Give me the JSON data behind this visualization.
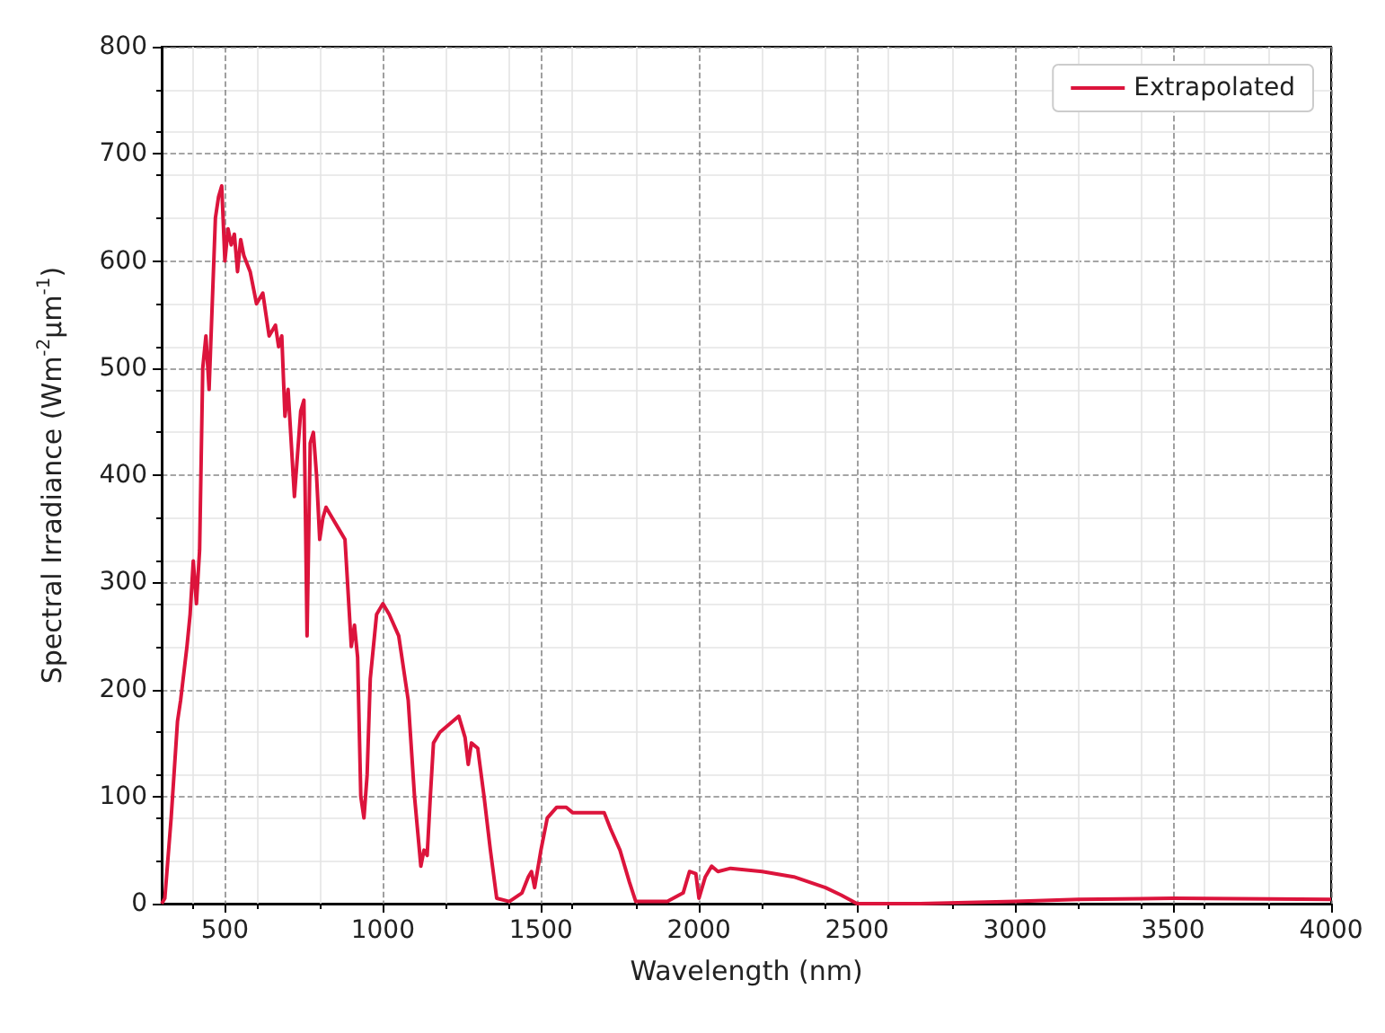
{
  "chart_data": {
    "type": "line",
    "xlabel": "Wavelength (nm)",
    "ylabel": "Spectral Irradiance (Wm$^{-2}$µm$^{-1}$)",
    "xlim": [
      300,
      4000
    ],
    "xticks": [
      500,
      1000,
      1500,
      2000,
      2500,
      3000,
      3500,
      4000
    ],
    "ylim": [
      0,
      800
    ],
    "yticks": [
      0,
      100,
      200,
      300,
      400,
      500,
      600,
      700,
      800
    ],
    "grid": true,
    "legend": "top right",
    "marker": "none",
    "line_style": "solid",
    "series": [
      {
        "name": "Extrapolated",
        "color": "#dc143c",
        "x": [
          300,
          310,
          330,
          350,
          360,
          380,
          390,
          400,
          410,
          420,
          430,
          440,
          450,
          460,
          470,
          480,
          490,
          500,
          510,
          520,
          530,
          540,
          550,
          560,
          580,
          600,
          620,
          640,
          660,
          670,
          680,
          690,
          700,
          720,
          740,
          750,
          760,
          770,
          780,
          790,
          800,
          810,
          820,
          840,
          860,
          880,
          900,
          910,
          920,
          930,
          940,
          950,
          960,
          970,
          980,
          1000,
          1020,
          1050,
          1080,
          1100,
          1120,
          1130,
          1140,
          1150,
          1160,
          1180,
          1200,
          1220,
          1240,
          1260,
          1270,
          1280,
          1300,
          1320,
          1340,
          1360,
          1400,
          1440,
          1460,
          1470,
          1480,
          1500,
          1520,
          1550,
          1580,
          1600,
          1650,
          1700,
          1720,
          1750,
          1780,
          1800,
          1900,
          1950,
          1970,
          1990,
          2000,
          2020,
          2040,
          2060,
          2100,
          2200,
          2300,
          2400,
          2450,
          2500,
          2700,
          3000,
          3200,
          3500,
          4000
        ],
        "values": [
          0,
          5,
          80,
          170,
          190,
          240,
          270,
          320,
          280,
          330,
          500,
          530,
          480,
          560,
          640,
          660,
          670,
          600,
          630,
          615,
          625,
          590,
          620,
          605,
          590,
          560,
          570,
          530,
          540,
          520,
          530,
          455,
          480,
          380,
          460,
          470,
          250,
          430,
          440,
          400,
          340,
          360,
          370,
          360,
          350,
          340,
          240,
          260,
          230,
          100,
          80,
          120,
          210,
          240,
          270,
          280,
          270,
          250,
          190,
          100,
          35,
          50,
          45,
          100,
          150,
          160,
          165,
          170,
          175,
          155,
          130,
          150,
          145,
          100,
          50,
          5,
          2,
          10,
          25,
          30,
          15,
          50,
          80,
          90,
          90,
          85,
          85,
          85,
          70,
          50,
          20,
          2,
          2,
          10,
          30,
          28,
          5,
          25,
          35,
          30,
          33,
          30,
          25,
          15,
          8,
          0,
          0,
          2,
          4,
          5,
          4
        ]
      }
    ]
  }
}
